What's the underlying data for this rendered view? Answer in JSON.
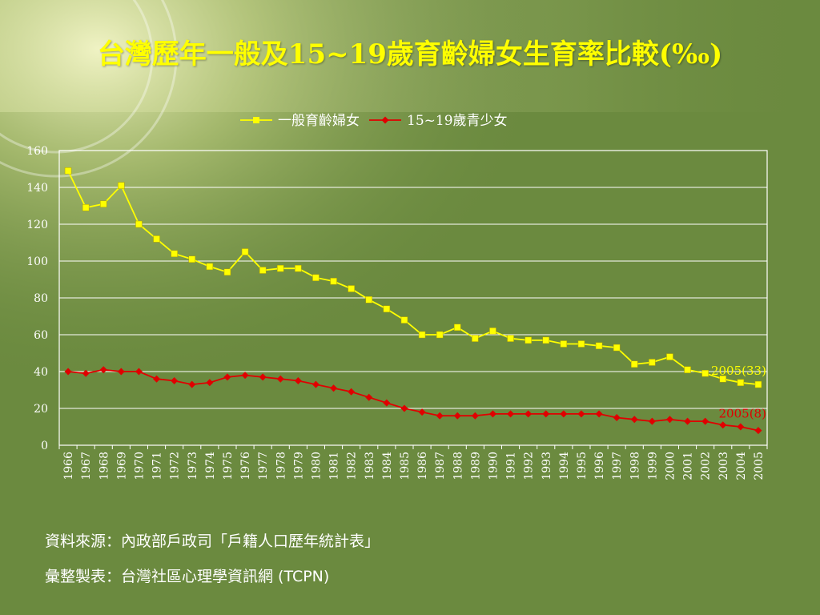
{
  "title": "台灣歷年一般及15~19歲育齡婦女生育率比較(‰)",
  "colors": {
    "background": "#6b8a3f",
    "title": "#ffff00",
    "series_general": "#ffff00",
    "series_teen": "#e00000",
    "gridline": "#ffffff",
    "text": "#ffffff"
  },
  "source_lines": [
    "資料來源：內政部戶政司「戶籍人口歷年統計表」",
    "彙整製表：台灣社區心理學資訊網 (TCPN)"
  ],
  "chart_data": {
    "type": "line",
    "title": "台灣歷年一般及15~19歲育齡婦女生育率比較(‰)",
    "xlabel": "",
    "ylabel": "",
    "categories": [
      "1966",
      "1967",
      "1968",
      "1969",
      "1970",
      "1971",
      "1972",
      "1973",
      "1974",
      "1975",
      "1976",
      "1977",
      "1978",
      "1979",
      "1980",
      "1981",
      "1982",
      "1983",
      "1984",
      "1985",
      "1986",
      "1987",
      "1988",
      "1989",
      "1990",
      "1991",
      "1992",
      "1993",
      "1994",
      "1995",
      "1996",
      "1997",
      "1998",
      "1999",
      "2000",
      "2001",
      "2002",
      "2003",
      "2004",
      "2005"
    ],
    "ylim": [
      0,
      160
    ],
    "yticks": [
      0,
      20,
      40,
      60,
      80,
      100,
      120,
      140,
      160
    ],
    "grid": true,
    "legend_position": "top",
    "series": [
      {
        "name": "一般育齡婦女",
        "marker": "square",
        "color": "#ffff00",
        "values": [
          149,
          129,
          131,
          141,
          120,
          112,
          104,
          101,
          97,
          94,
          105,
          95,
          96,
          96,
          91,
          89,
          85,
          79,
          74,
          68,
          60,
          60,
          64,
          58,
          62,
          58,
          57,
          57,
          55,
          55,
          54,
          53,
          44,
          45,
          48,
          41,
          39,
          36,
          34,
          33
        ]
      },
      {
        "name": "15~19歲青少女",
        "marker": "diamond",
        "color": "#e00000",
        "values": [
          40,
          39,
          41,
          40,
          40,
          36,
          35,
          33,
          34,
          37,
          38,
          37,
          36,
          35,
          33,
          31,
          29,
          26,
          23,
          20,
          18,
          16,
          16,
          16,
          17,
          17,
          17,
          17,
          17,
          17,
          17,
          15,
          14,
          13,
          14,
          13,
          13,
          11,
          10,
          8
        ]
      }
    ],
    "annotations": [
      {
        "text": "2005(33)",
        "series": "一般育齡婦女",
        "x": "2005",
        "y": 33
      },
      {
        "text": "2005(8)",
        "series": "15~19歲青少女",
        "x": "2005",
        "y": 8
      }
    ]
  }
}
